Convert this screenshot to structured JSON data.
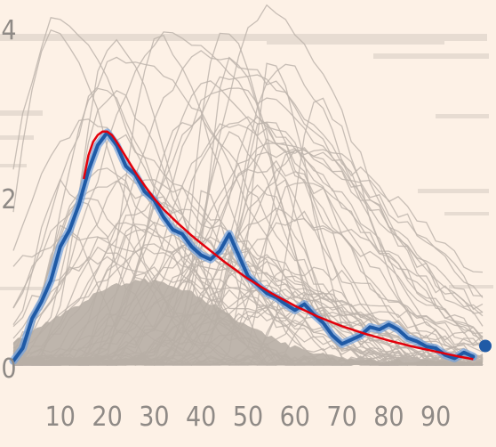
{
  "chart_data": {
    "type": "line",
    "title": "",
    "xlabel": "",
    "ylabel": "",
    "xlim": [
      0,
      100
    ],
    "ylim": [
      0,
      4
    ],
    "grid": false,
    "legend": "none",
    "x_ticks": [
      10,
      20,
      30,
      40,
      50,
      60,
      70,
      80,
      90
    ],
    "y_ticks": [
      0,
      2,
      4
    ],
    "colors": {
      "background": "#fdf1e6",
      "background_lines": "#bdb4ab",
      "fill_mass": "#b7aea5",
      "highlight": "#1f5aa6",
      "highlight_halo": "#6fa0dd",
      "fit": "#e3000b"
    },
    "series": [
      {
        "role": "highlight",
        "x": [
          0,
          2,
          4,
          6,
          8,
          10,
          12,
          14,
          16,
          18,
          20,
          22,
          24,
          26,
          28,
          30,
          32,
          34,
          36,
          38,
          40,
          42,
          44,
          46,
          48,
          50,
          52,
          54,
          56,
          58,
          60,
          62,
          64,
          66,
          68,
          70,
          72,
          74,
          76,
          78,
          80,
          82,
          84,
          86,
          88,
          90,
          92,
          94,
          96,
          98
        ],
        "values": [
          0.05,
          0.2,
          0.55,
          0.75,
          1.0,
          1.4,
          1.6,
          1.9,
          2.3,
          2.6,
          2.75,
          2.6,
          2.35,
          2.25,
          2.05,
          1.95,
          1.75,
          1.6,
          1.55,
          1.4,
          1.3,
          1.25,
          1.35,
          1.55,
          1.3,
          1.05,
          0.95,
          0.85,
          0.8,
          0.72,
          0.65,
          0.72,
          0.6,
          0.5,
          0.35,
          0.25,
          0.3,
          0.35,
          0.45,
          0.42,
          0.48,
          0.42,
          0.32,
          0.28,
          0.22,
          0.2,
          0.12,
          0.08,
          0.15,
          0.1
        ]
      },
      {
        "role": "fit",
        "x": [
          15,
          16,
          17,
          18,
          19,
          20,
          21,
          22,
          24,
          26,
          28,
          30,
          32,
          35,
          38,
          40,
          45,
          50,
          55,
          60,
          65,
          70,
          75,
          80,
          85,
          90,
          95,
          98
        ],
        "values": [
          2.2,
          2.48,
          2.64,
          2.72,
          2.76,
          2.76,
          2.72,
          2.64,
          2.46,
          2.28,
          2.12,
          1.97,
          1.84,
          1.68,
          1.53,
          1.44,
          1.22,
          1.02,
          0.85,
          0.7,
          0.57,
          0.46,
          0.37,
          0.29,
          0.22,
          0.16,
          0.1,
          0.07
        ]
      }
    ]
  }
}
